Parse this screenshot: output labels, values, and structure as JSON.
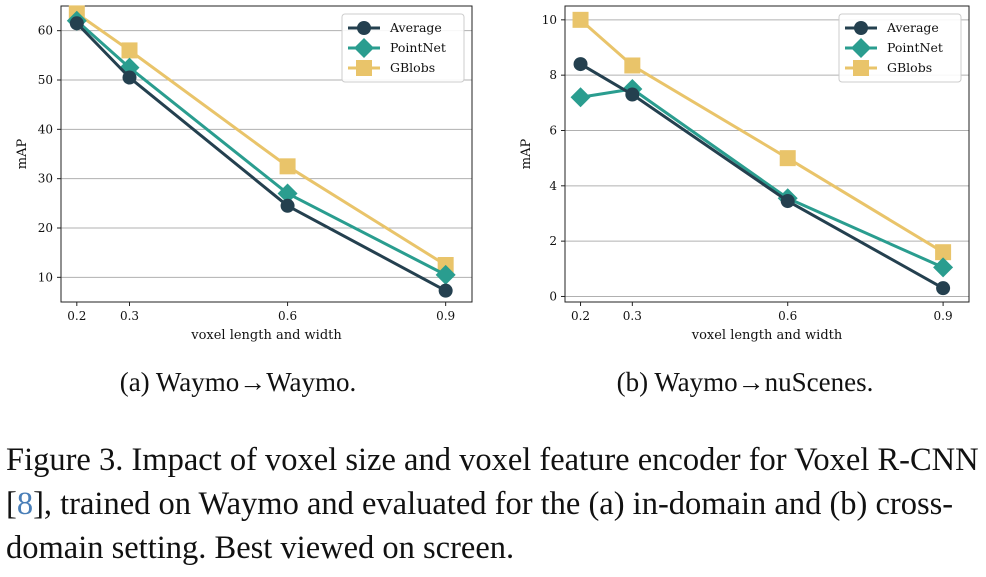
{
  "colors": {
    "average": "#24404f",
    "pointnet": "#2a9d8f",
    "gblobs": "#e9c46a",
    "grid": "#b0b0b0",
    "ref_link": "#4a7fb8"
  },
  "chart_data": [
    {
      "type": "line",
      "x": [
        0.2,
        0.3,
        0.6,
        0.9
      ],
      "xticks": [
        "0.2",
        "0.3",
        "0.6",
        "0.9"
      ],
      "xlabel": "voxel length and width",
      "ylabel": "mAP",
      "xlim": [
        0.17,
        0.95
      ],
      "ylim": [
        5,
        65
      ],
      "yticks": [
        10,
        20,
        30,
        40,
        50,
        60
      ],
      "grid": "horizontal",
      "legend_position": "top-right",
      "series": [
        {
          "name": "Average",
          "marker": "circle",
          "color_key": "average",
          "values": [
            61.5,
            50.5,
            24.5,
            7.3
          ]
        },
        {
          "name": "PointNet",
          "marker": "diamond",
          "color_key": "pointnet",
          "values": [
            62.0,
            52.5,
            27.0,
            10.5
          ]
        },
        {
          "name": "GBlobs",
          "marker": "square",
          "color_key": "gblobs",
          "values": [
            63.5,
            56.0,
            32.5,
            12.5
          ]
        }
      ],
      "subcaption": "(a) Waymo→Waymo."
    },
    {
      "type": "line",
      "x": [
        0.2,
        0.3,
        0.6,
        0.9
      ],
      "xticks": [
        "0.2",
        "0.3",
        "0.6",
        "0.9"
      ],
      "xlabel": "voxel length and width",
      "ylabel": "mAP",
      "xlim": [
        0.17,
        0.95
      ],
      "ylim": [
        -0.2,
        10.5
      ],
      "yticks": [
        0,
        2,
        4,
        6,
        8,
        10
      ],
      "grid": "horizontal",
      "legend_position": "top-right",
      "series": [
        {
          "name": "Average",
          "marker": "circle",
          "color_key": "average",
          "values": [
            8.4,
            7.3,
            3.45,
            0.3
          ]
        },
        {
          "name": "PointNet",
          "marker": "diamond",
          "color_key": "pointnet",
          "values": [
            7.2,
            7.5,
            3.55,
            1.05
          ]
        },
        {
          "name": "GBlobs",
          "marker": "square",
          "color_key": "gblobs",
          "values": [
            10.0,
            8.35,
            5.0,
            1.6
          ]
        }
      ],
      "subcaption": "(b) Waymo→nuScenes."
    }
  ],
  "caption": {
    "part1": "Figure 3. Impact of voxel size and voxel feature encoder for Voxel R-CNN [",
    "ref": "8",
    "part2": "], trained on Waymo and evaluated for the (a) in-domain and (b) cross-domain setting. Best viewed on screen."
  }
}
